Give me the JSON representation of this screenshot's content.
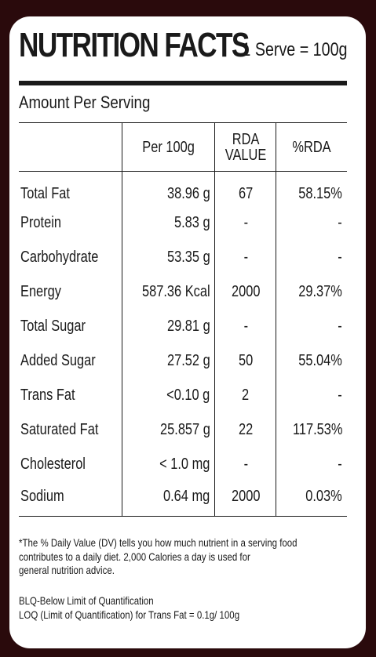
{
  "title": "NUTRITION FACTS",
  "serve": "1 Serve = 100g",
  "amount_label": "Amount Per Serving",
  "columns": {
    "per100": "Per 100g",
    "rda_line1": "RDA",
    "rda_line2": "VALUE",
    "pct": "%RDA"
  },
  "rows": [
    {
      "name": "Total Fat",
      "value": "38.96 g",
      "rda": "67",
      "pct": "58.15%"
    },
    {
      "name": "Protein",
      "value": "5.83 g",
      "rda": "-",
      "pct": "-"
    },
    {
      "name": "Carbohydrate",
      "value": "53.35 g",
      "rda": "-",
      "pct": "-"
    },
    {
      "name": "Energy",
      "value": "587.36 Kcal",
      "rda": "2000",
      "pct": "29.37%"
    },
    {
      "name": "Total Sugar",
      "value": "29.81 g",
      "rda": "-",
      "pct": "-"
    },
    {
      "name": "Added Sugar",
      "value": "27.52 g",
      "rda": "50",
      "pct": "55.04%"
    },
    {
      "name": "Trans Fat",
      "value": "<0.10 g",
      "rda": "2",
      "pct": "-"
    },
    {
      "name": "Saturated Fat",
      "value": "25.857 g",
      "rda": "22",
      "pct": "117.53%"
    },
    {
      "name": "Cholesterol",
      "value": "< 1.0 mg",
      "rda": "-",
      "pct": "-"
    },
    {
      "name": "Sodium",
      "value": "0.64 mg",
      "rda": "2000",
      "pct": "0.03%"
    }
  ],
  "footnote": {
    "line1": "*The % Daily Value (DV) tells you how much nutrient in a serving food",
    "line2": "contributes to a daily diet. 2,000 Calories a day is used for",
    "line3": "general nutrition advice."
  },
  "legend": {
    "blq": "BLQ-Below Limit of Quantification",
    "loq": "LOQ (Limit of Quantification) for Trans Fat = 0.1g/ 100g"
  }
}
